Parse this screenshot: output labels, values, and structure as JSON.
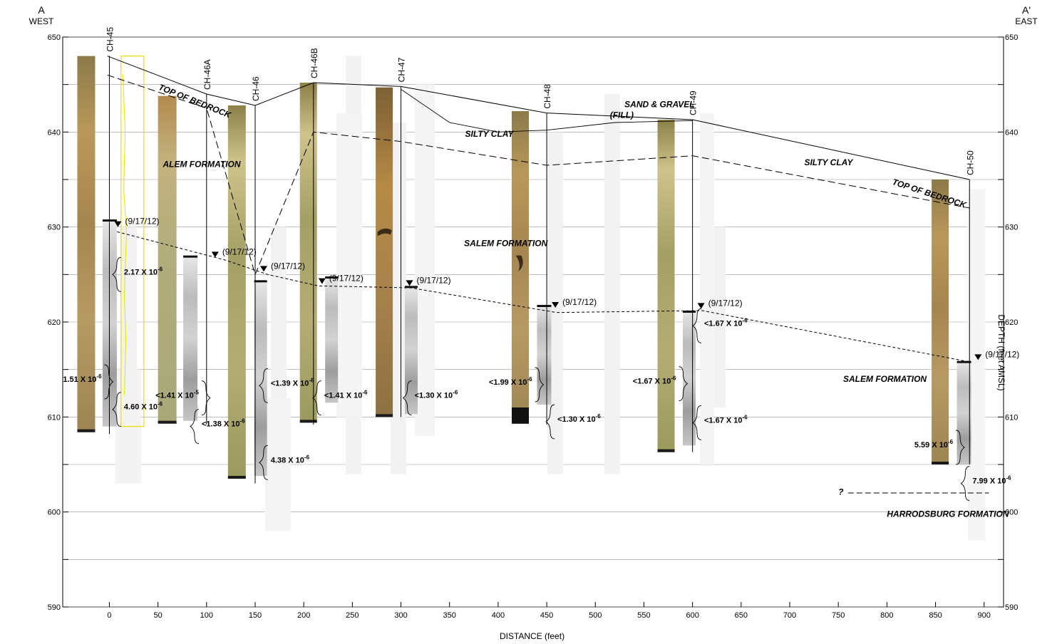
{
  "section": {
    "left_end": "A",
    "left_dir": "WEST",
    "right_end": "A'",
    "right_dir": "EAST",
    "x_axis_label": "DISTANCE (feet)",
    "y_axis_label": "DEPTH (feet AMSL)",
    "x_ticks": [
      "0",
      "50",
      "100",
      "150",
      "200",
      "250",
      "300",
      "350",
      "400",
      "450",
      "500",
      "550",
      "600",
      "650",
      "700",
      "750",
      "800",
      "850",
      "900"
    ],
    "y_ticks": [
      "650",
      "640",
      "630",
      "620",
      "610",
      "600",
      "590"
    ],
    "x_range": [
      -48,
      920
    ],
    "y_range": [
      590,
      650
    ]
  },
  "boreholes": [
    {
      "name": "CH-45",
      "x": 0,
      "top_elev": 648.0,
      "bottom_elev": 608.2,
      "water_level_date": "(9/17/12)",
      "water_elev": 630.0
    },
    {
      "name": "CH-46A",
      "x": 100,
      "top_elev": 644.0,
      "bottom_elev": 609.2,
      "water_level_date": "(9/17/12)",
      "water_elev": 626.8
    },
    {
      "name": "CH-46",
      "x": 150,
      "top_elev": 642.8,
      "bottom_elev": 603.0,
      "water_level_date": "(9/17/12)",
      "water_elev": 625.3
    },
    {
      "name": "CH-46B",
      "x": 210,
      "top_elev": 645.2,
      "bottom_elev": 609.2,
      "water_level_date": "(9/17/12)",
      "water_elev": 624.0
    },
    {
      "name": "CH-47",
      "x": 300,
      "top_elev": 644.8,
      "bottom_elev": 610.0,
      "water_level_date": "(9/17/12)",
      "water_elev": 623.8
    },
    {
      "name": "CH-48",
      "x": 450,
      "top_elev": 642.0,
      "bottom_elev": 609.2,
      "water_level_date": "(9/17/12)",
      "water_elev": 621.5
    },
    {
      "name": "CH-49",
      "x": 600,
      "top_elev": 641.3,
      "bottom_elev": 606.3,
      "water_level_date": "(9/17/12)",
      "water_elev": 621.4
    },
    {
      "name": "CH-50",
      "x": 885,
      "top_elev": 635.0,
      "bottom_elev": 605.0,
      "water_level_date": "(9/17/12)",
      "water_elev": 616.0
    }
  ],
  "formation_labels": [
    {
      "text": "TOP OF BEDROCK",
      "x": 50,
      "elev": 644.5,
      "rotate": 22
    },
    {
      "text": "ALEM FORMATION",
      "x": 55,
      "elev": 636.3,
      "rotate": 0
    },
    {
      "text": "SAND & GRAVEL",
      "x": 530,
      "elev": 642.6,
      "rotate": 0
    },
    {
      "text": "(FILL)",
      "x": 515,
      "elev": 641.5,
      "rotate": 0
    },
    {
      "text": "SILTY CLAY",
      "x": 366,
      "elev": 639.5,
      "rotate": 0
    },
    {
      "text": "SALEM FORMATION",
      "x": 365,
      "elev": 628.0,
      "rotate": 0
    },
    {
      "text": "SILTY CLAY",
      "x": 715,
      "elev": 636.5,
      "rotate": 0
    },
    {
      "text": "TOP OF BEDROCK",
      "x": 805,
      "elev": 634.5,
      "rotate": 18
    },
    {
      "text": "SALEM FORMATION",
      "x": 755,
      "elev": 613.7,
      "rotate": 0
    },
    {
      "text": "HARRODSBURG FORMATION",
      "x": 800,
      "elev": 599.5,
      "rotate": 0
    },
    {
      "text": "?",
      "x": 750,
      "elev": 601.8,
      "rotate": 0
    }
  ],
  "k_values": [
    {
      "base": "2.17 X 10",
      "exp": "-6",
      "x": 15,
      "elev": 625.0,
      "anchor": "start"
    },
    {
      "base": "1.51 X 10",
      "exp": "-6",
      "x": -8,
      "elev": 613.7,
      "anchor": "end"
    },
    {
      "base": "4.60 X 10",
      "exp": "-6",
      "x": 15,
      "elev": 610.8,
      "anchor": "start"
    },
    {
      "base": "<1.41 X 10",
      "exp": "-5",
      "x": 92,
      "elev": 612.0,
      "anchor": "end"
    },
    {
      "base": "<1.38 X 10",
      "exp": "-6",
      "x": 95,
      "elev": 609.0,
      "anchor": "start"
    },
    {
      "base": "<1.39 X 10",
      "exp": "-6",
      "x": 166,
      "elev": 613.3,
      "anchor": "start"
    },
    {
      "base": "4.38 X 10",
      "exp": "-6",
      "x": 166,
      "elev": 605.2,
      "anchor": "start"
    },
    {
      "base": "<1.41 X 10",
      "exp": "-6",
      "x": 221,
      "elev": 612.0,
      "anchor": "start"
    },
    {
      "base": "<1.30 X 10",
      "exp": "-6",
      "x": 314,
      "elev": 612.0,
      "anchor": "start"
    },
    {
      "base": "<1.99 X 10",
      "exp": "-6",
      "x": 435,
      "elev": 613.4,
      "anchor": "end"
    },
    {
      "base": "<1.30 X 10",
      "exp": "-6",
      "x": 461,
      "elev": 609.5,
      "anchor": "start"
    },
    {
      "base": "<1.67 X 10",
      "exp": "-6",
      "x": 612,
      "elev": 619.6,
      "anchor": "start"
    },
    {
      "base": "<1.67 X 10",
      "exp": "-6",
      "x": 583,
      "elev": 613.5,
      "anchor": "end"
    },
    {
      "base": "<1.67 X 10",
      "exp": "-6",
      "x": 612,
      "elev": 609.4,
      "anchor": "start"
    },
    {
      "base": "5.59 X 10",
      "exp": "-6",
      "x": 868,
      "elev": 606.8,
      "anchor": "end"
    },
    {
      "base": "7.99 X 10",
      "exp": "-6",
      "x": 888,
      "elev": 603.0,
      "anchor": "start"
    }
  ],
  "colors": {
    "core_warm": "#a98a4e",
    "core_green": "#b0a868",
    "core_pale": "#c8c19a",
    "core_grey": "#a7a7a7",
    "core_dark": "#1a1a1a",
    "yellow_trace": "#e6e000",
    "grid": "#999999"
  }
}
